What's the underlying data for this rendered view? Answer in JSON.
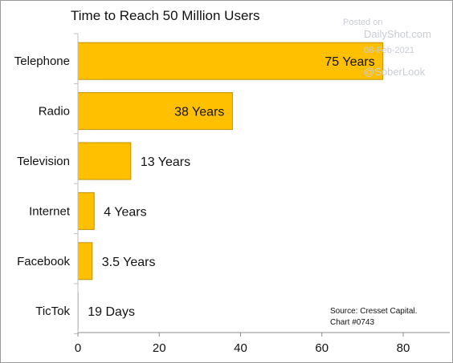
{
  "chart_data": {
    "type": "bar",
    "orientation": "horizontal",
    "title": "Time to Reach 50 Million Users",
    "categories": [
      "Telephone",
      "Radio",
      "Television",
      "Internet",
      "Facebook",
      "TicTok"
    ],
    "values": [
      75,
      38,
      13,
      4,
      3.5,
      0.05
    ],
    "data_labels": [
      "75 Years",
      "38 Years",
      "13 Years",
      "4 Years",
      "3.5 Years",
      "19 Days"
    ],
    "xlim": [
      0,
      90
    ],
    "xticks": [
      0,
      20,
      40,
      60,
      80
    ],
    "xlabel": "",
    "ylabel": "",
    "grid": false,
    "bar_color": "#FFC000",
    "bar_edge_color": "#C09000"
  },
  "watermark": {
    "line1": "Posted on",
    "line2": "DailyShot.com",
    "line3": "08-Feb-2021",
    "line4": "@SoberLook"
  },
  "source": {
    "line1": "Source: Cresset Capital.",
    "line2": "Chart #0743"
  }
}
